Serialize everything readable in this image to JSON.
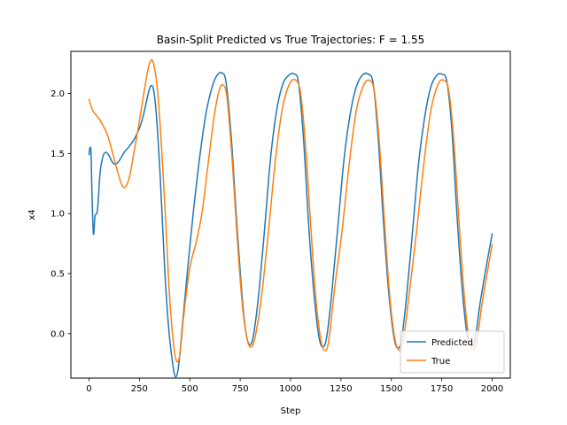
{
  "chart_data": {
    "type": "line",
    "title": "Basin-Split Predicted vs True Trajectories: F = 1.55",
    "xlabel": "Step",
    "ylabel": "x4",
    "xlim": [
      -90,
      2090
    ],
    "ylim": [
      -0.37,
      2.35
    ],
    "xticks": [
      0,
      250,
      500,
      750,
      1000,
      1250,
      1500,
      1750,
      2000
    ],
    "xtick_labels": [
      "0",
      "250",
      "500",
      "750",
      "1000",
      "1250",
      "1500",
      "1750",
      "2000"
    ],
    "yticks": [
      0.0,
      0.5,
      1.0,
      1.5,
      2.0
    ],
    "ytick_labels": [
      "0.0",
      "0.5",
      "1.0",
      "1.5",
      "2.0"
    ],
    "grid": false,
    "legend_position": "lower-right",
    "series": [
      {
        "name": "Predicted",
        "color": "#1f77b4",
        "points": [
          [
            0,
            1.49
          ],
          [
            5,
            1.55
          ],
          [
            10,
            1.5
          ],
          [
            15,
            1.15
          ],
          [
            22,
            0.83
          ],
          [
            30,
            0.98
          ],
          [
            42,
            1.03
          ],
          [
            55,
            1.34
          ],
          [
            70,
            1.48
          ],
          [
            85,
            1.51
          ],
          [
            100,
            1.48
          ],
          [
            115,
            1.43
          ],
          [
            130,
            1.41
          ],
          [
            150,
            1.44
          ],
          [
            175,
            1.51
          ],
          [
            200,
            1.56
          ],
          [
            225,
            1.62
          ],
          [
            250,
            1.71
          ],
          [
            270,
            1.82
          ],
          [
            290,
            1.97
          ],
          [
            305,
            2.06
          ],
          [
            320,
            2.03
          ],
          [
            335,
            1.8
          ],
          [
            355,
            1.25
          ],
          [
            375,
            0.55
          ],
          [
            395,
            0.05
          ],
          [
            415,
            -0.25
          ],
          [
            430,
            -0.36
          ],
          [
            445,
            -0.26
          ],
          [
            465,
            0.1
          ],
          [
            490,
            0.55
          ],
          [
            520,
            1.05
          ],
          [
            550,
            1.48
          ],
          [
            580,
            1.83
          ],
          [
            610,
            2.05
          ],
          [
            635,
            2.15
          ],
          [
            660,
            2.17
          ],
          [
            680,
            2.09
          ],
          [
            705,
            1.65
          ],
          [
            730,
            1.0
          ],
          [
            755,
            0.4
          ],
          [
            775,
            0.05
          ],
          [
            795,
            -0.09
          ],
          [
            815,
            -0.02
          ],
          [
            840,
            0.3
          ],
          [
            870,
            0.85
          ],
          [
            900,
            1.45
          ],
          [
            930,
            1.85
          ],
          [
            960,
            2.07
          ],
          [
            990,
            2.15
          ],
          [
            1020,
            2.16
          ],
          [
            1040,
            2.08
          ],
          [
            1065,
            1.6
          ],
          [
            1090,
            0.9
          ],
          [
            1115,
            0.35
          ],
          [
            1140,
            -0.02
          ],
          [
            1160,
            -0.11
          ],
          [
            1180,
            -0.02
          ],
          [
            1205,
            0.35
          ],
          [
            1235,
            0.9
          ],
          [
            1265,
            1.45
          ],
          [
            1295,
            1.82
          ],
          [
            1325,
            2.05
          ],
          [
            1355,
            2.15
          ],
          [
            1385,
            2.16
          ],
          [
            1410,
            2.08
          ],
          [
            1435,
            1.62
          ],
          [
            1460,
            0.95
          ],
          [
            1485,
            0.38
          ],
          [
            1510,
            0.0
          ],
          [
            1530,
            -0.12
          ],
          [
            1550,
            -0.05
          ],
          [
            1575,
            0.3
          ],
          [
            1605,
            0.85
          ],
          [
            1635,
            1.42
          ],
          [
            1665,
            1.8
          ],
          [
            1695,
            2.05
          ],
          [
            1725,
            2.15
          ],
          [
            1750,
            2.16
          ],
          [
            1775,
            2.1
          ],
          [
            1800,
            1.7
          ],
          [
            1825,
            1.0
          ],
          [
            1850,
            0.4
          ],
          [
            1875,
            0.0
          ],
          [
            1895,
            -0.1
          ],
          [
            1915,
            -0.05
          ],
          [
            1940,
            0.25
          ],
          [
            1970,
            0.55
          ],
          [
            2000,
            0.83
          ]
        ]
      },
      {
        "name": "True",
        "color": "#ff7f0e",
        "points": [
          [
            0,
            1.95
          ],
          [
            15,
            1.87
          ],
          [
            30,
            1.83
          ],
          [
            50,
            1.79
          ],
          [
            70,
            1.73
          ],
          [
            90,
            1.66
          ],
          [
            110,
            1.55
          ],
          [
            130,
            1.42
          ],
          [
            150,
            1.3
          ],
          [
            165,
            1.23
          ],
          [
            180,
            1.22
          ],
          [
            200,
            1.3
          ],
          [
            220,
            1.48
          ],
          [
            245,
            1.72
          ],
          [
            270,
            1.98
          ],
          [
            290,
            2.18
          ],
          [
            305,
            2.27
          ],
          [
            320,
            2.25
          ],
          [
            340,
            2.02
          ],
          [
            360,
            1.55
          ],
          [
            380,
            0.95
          ],
          [
            400,
            0.3
          ],
          [
            420,
            -0.1
          ],
          [
            435,
            -0.23
          ],
          [
            450,
            -0.18
          ],
          [
            470,
            0.15
          ],
          [
            500,
            0.55
          ],
          [
            530,
            0.75
          ],
          [
            560,
            1.0
          ],
          [
            590,
            1.4
          ],
          [
            620,
            1.8
          ],
          [
            645,
            2.02
          ],
          [
            665,
            2.07
          ],
          [
            685,
            1.96
          ],
          [
            710,
            1.45
          ],
          [
            735,
            0.8
          ],
          [
            760,
            0.25
          ],
          [
            785,
            -0.05
          ],
          [
            805,
            -0.11
          ],
          [
            825,
            -0.02
          ],
          [
            855,
            0.3
          ],
          [
            890,
            0.85
          ],
          [
            925,
            1.45
          ],
          [
            960,
            1.88
          ],
          [
            995,
            2.08
          ],
          [
            1025,
            2.11
          ],
          [
            1050,
            2.0
          ],
          [
            1075,
            1.55
          ],
          [
            1100,
            0.9
          ],
          [
            1125,
            0.3
          ],
          [
            1150,
            -0.05
          ],
          [
            1170,
            -0.14
          ],
          [
            1190,
            -0.05
          ],
          [
            1220,
            0.4
          ],
          [
            1255,
            0.85
          ],
          [
            1290,
            1.4
          ],
          [
            1325,
            1.85
          ],
          [
            1360,
            2.06
          ],
          [
            1390,
            2.11
          ],
          [
            1415,
            2.02
          ],
          [
            1440,
            1.6
          ],
          [
            1465,
            0.95
          ],
          [
            1490,
            0.35
          ],
          [
            1515,
            -0.02
          ],
          [
            1540,
            -0.14
          ],
          [
            1560,
            -0.05
          ],
          [
            1590,
            0.35
          ],
          [
            1625,
            0.85
          ],
          [
            1660,
            1.4
          ],
          [
            1695,
            1.85
          ],
          [
            1730,
            2.07
          ],
          [
            1760,
            2.11
          ],
          [
            1785,
            2.02
          ],
          [
            1810,
            1.6
          ],
          [
            1835,
            0.95
          ],
          [
            1860,
            0.35
          ],
          [
            1885,
            -0.05
          ],
          [
            1905,
            -0.13
          ],
          [
            1925,
            -0.05
          ],
          [
            1950,
            0.25
          ],
          [
            1975,
            0.5
          ],
          [
            2000,
            0.74
          ]
        ]
      }
    ]
  }
}
